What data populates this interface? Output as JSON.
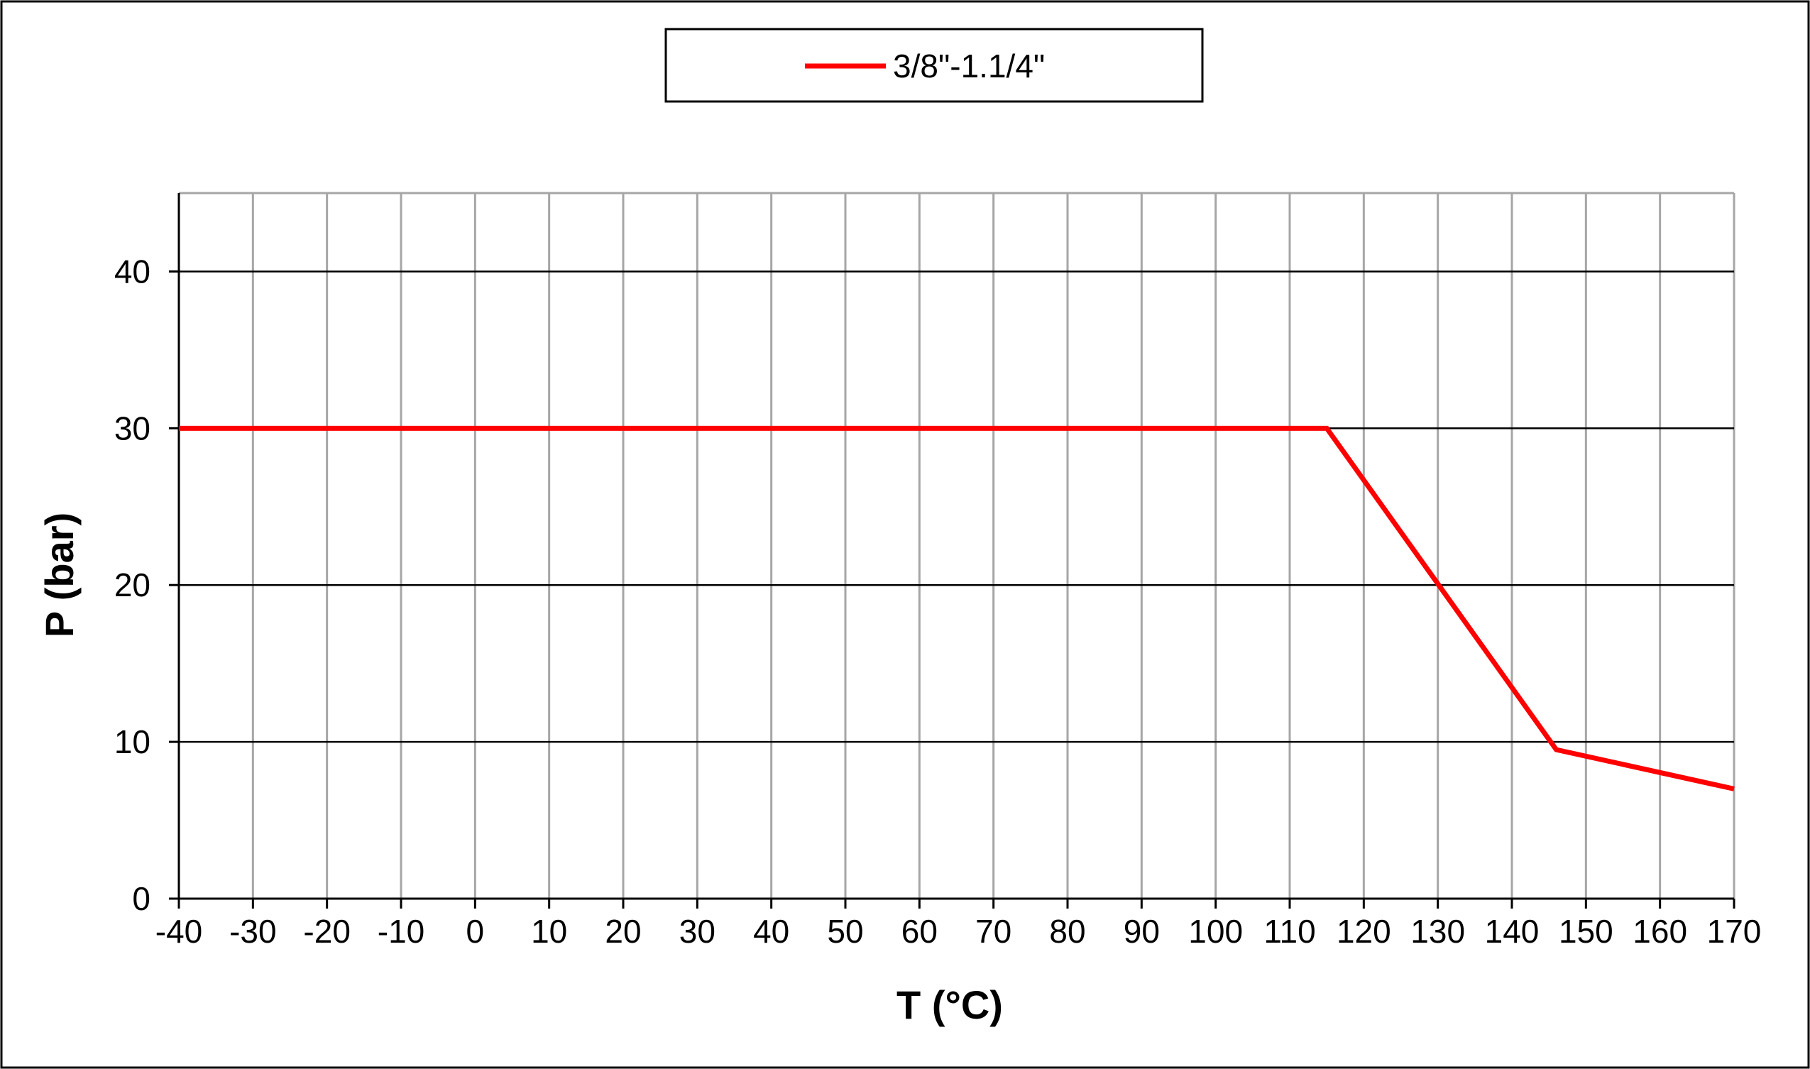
{
  "chart_data": {
    "type": "line",
    "title": "",
    "xlabel": "T (°C)",
    "ylabel": "P (bar)",
    "xlim": [
      -40,
      170
    ],
    "ylim": [
      0,
      45
    ],
    "x_ticks": [
      -40,
      -30,
      -20,
      -10,
      0,
      10,
      20,
      30,
      40,
      50,
      60,
      70,
      80,
      90,
      100,
      110,
      120,
      130,
      140,
      150,
      160,
      170
    ],
    "x_tick_labels": [
      "-40",
      "-30",
      "-20",
      "-10",
      "0",
      "10",
      "20",
      "30",
      "40",
      "50",
      "60",
      "70",
      "80",
      "90",
      "100",
      "110",
      "120",
      "130",
      "140",
      "150",
      "160",
      "170"
    ],
    "y_ticks": [
      0,
      10,
      20,
      30,
      40
    ],
    "y_tick_labels": [
      "0",
      "10",
      "20",
      "30",
      "40"
    ],
    "grid": {
      "vertical": true,
      "horizontal": true
    },
    "legend_position": "top-center",
    "series": [
      {
        "name": "3/8\"-1.1/4\"",
        "color": "#ff0000",
        "x": [
          -40,
          115,
          146,
          170
        ],
        "y": [
          30,
          30,
          9.5,
          7
        ]
      }
    ]
  },
  "colors": {
    "vertical_grid": "#a6a6a6",
    "horizontal_grid": "#000000",
    "axis": "#000000",
    "border": "#000000"
  }
}
